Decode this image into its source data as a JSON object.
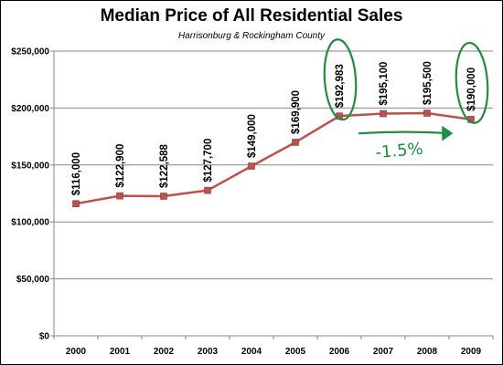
{
  "chart_data": {
    "type": "line",
    "title": "Median Price of All Residential Sales",
    "subtitle": "Harrisonburg & Rockingham County",
    "xlabel": "",
    "ylabel": "",
    "categories": [
      "2000",
      "2001",
      "2002",
      "2003",
      "2004",
      "2005",
      "2006",
      "2007",
      "2008",
      "2009"
    ],
    "series": [
      {
        "values": [
          116000,
          122900,
          122588,
          127700,
          149000,
          169900,
          192983,
          195100,
          195500,
          190000
        ],
        "data_labels": [
          "$116,000",
          "$122,900",
          "$122,588",
          "$127,700",
          "$149,000",
          "$169,900",
          "$192,983",
          "$195,100",
          "$195,500",
          "$190,000"
        ],
        "color": "#c0504d"
      }
    ],
    "ylim": [
      0,
      250000
    ],
    "y_ticks": [
      0,
      50000,
      100000,
      150000,
      200000,
      250000
    ],
    "y_tick_labels": [
      "$0",
      "$50,000",
      "$100,000",
      "$150,000",
      "$200,000",
      "$250,000"
    ],
    "grid": "horizontal",
    "legend": "none",
    "annotations": [
      {
        "text": "-1.5%",
        "color": "#1e8f3e",
        "from_category": "2006",
        "to_category": "2009",
        "circled_categories": [
          "2006",
          "2009"
        ]
      }
    ]
  }
}
